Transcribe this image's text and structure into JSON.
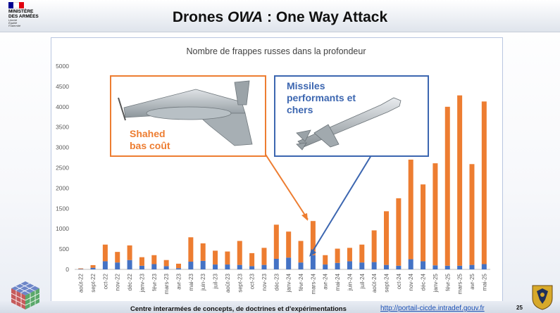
{
  "slide": {
    "title_main": "Drones ",
    "title_italic": "OWA",
    "title_rest": " : One Way Attack",
    "page_number": "25",
    "logo": {
      "line1": "MINISTÈRE",
      "line2": "DES ARMÉES",
      "motto1": "Liberté",
      "motto2": "Égalité",
      "motto3": "Fraternité"
    },
    "footer_center": "Centre interarmées de concepts, de doctrines et d'expérimentations",
    "footer_link": "http://portail-cicde.intradef.gouv.fr",
    "colors": {
      "orange": "#ed7d31",
      "blue": "#4472c4",
      "callout_blue": "#3c66b0",
      "flag_blue": "#000091",
      "flag_red": "#e1000f"
    }
  },
  "callouts": {
    "shahed": {
      "line1": "Shahed",
      "line2": "bas coût",
      "icon": "shahed-drone-image"
    },
    "missile": {
      "line1": "Missiles",
      "line2": "performants et",
      "line3": "chers",
      "icon": "cruise-missile-image"
    }
  },
  "chart_data": {
    "type": "bar",
    "stacked": true,
    "title": "Nombre de frappes russes dans la profondeur",
    "xlabel": "",
    "ylabel": "",
    "ylim": [
      0,
      5000
    ],
    "yticks": [
      0,
      500,
      1000,
      1500,
      2000,
      2500,
      3000,
      3500,
      4000,
      4500,
      5000
    ],
    "grid": false,
    "legend": "none",
    "categories": [
      "août-22",
      "sept-22",
      "oct-22",
      "nov-22",
      "déc-22",
      "janv-23",
      "févr-23",
      "mars-23",
      "avr-23",
      "mai-23",
      "juin-23",
      "juil-23",
      "août-23",
      "sept-23",
      "oct-23",
      "nov-23",
      "déc-23",
      "janv-24",
      "févr-24",
      "mars-24",
      "avr-24",
      "mai-24",
      "juin-24",
      "juil-24",
      "août-24",
      "sept-24",
      "oct-24",
      "nov-24",
      "déc-24",
      "janv-25",
      "févr-25",
      "mars-25",
      "avr-25",
      "mai-25"
    ],
    "series": [
      {
        "color": "#4472c4",
        "values": [
          10,
          40,
          200,
          170,
          230,
          90,
          130,
          80,
          30,
          190,
          210,
          120,
          120,
          110,
          80,
          110,
          260,
          290,
          170,
          350,
          120,
          160,
          200,
          170,
          180,
          110,
          90,
          250,
          200,
          100,
          90,
          90,
          110,
          130
        ]
      },
      {
        "color": "#ed7d31",
        "values": [
          15,
          65,
          410,
          260,
          360,
          210,
          220,
          150,
          110,
          600,
          430,
          340,
          320,
          590,
          320,
          420,
          840,
          640,
          530,
          840,
          230,
          350,
          330,
          440,
          780,
          1320,
          1660,
          2450,
          1890,
          2510,
          3910,
          4190,
          2480,
          4000
        ]
      }
    ]
  }
}
